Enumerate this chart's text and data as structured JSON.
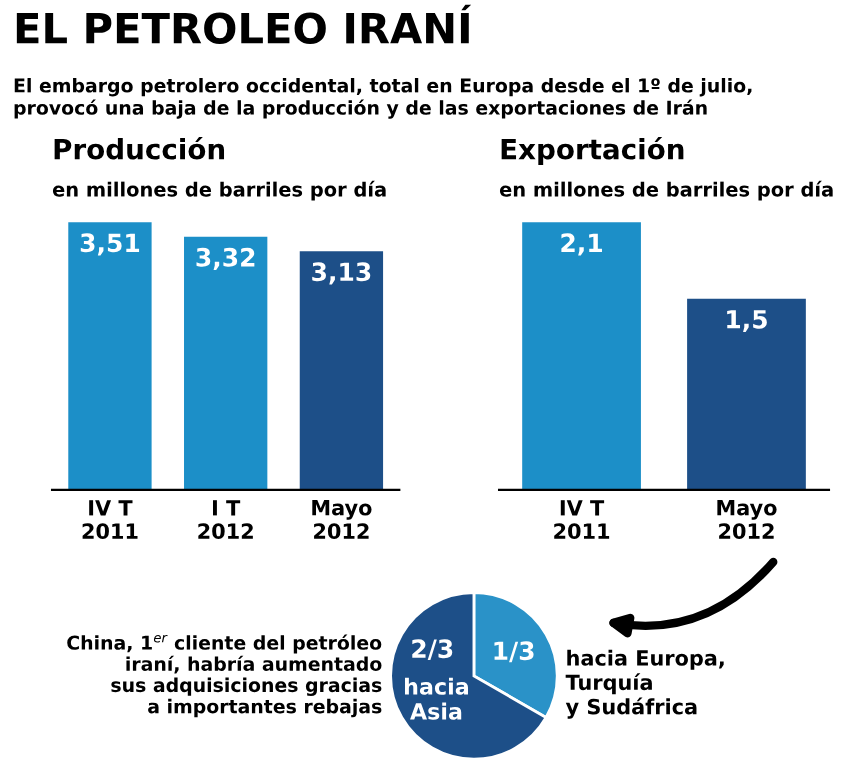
{
  "chart_data": [
    {
      "type": "bar",
      "title": "Producción",
      "subtitle": "en millones de barriles por día",
      "annotations": [
        "EL PETROLEO IRANÍ",
        "El embargo petrolero occidental, total en Europa desde el 1º de julio,\nprovocó una baja de la producción y de las exportaciones de Irán"
      ],
      "categories": [
        "IV T\n2011",
        "I T\n2012",
        "Mayo\n2012"
      ],
      "values": [
        3.51,
        3.32,
        3.13
      ],
      "value_labels": [
        "3,51",
        "3,32",
        "3,13"
      ],
      "colors": [
        "#1c8fc8",
        "#1c8fc8",
        "#1d4f88"
      ]
    },
    {
      "type": "bar",
      "title": "Exportación",
      "subtitle": "en millones de barriles por día",
      "categories": [
        "IV T\n2011",
        "Mayo\n2012"
      ],
      "values": [
        2.1,
        1.5
      ],
      "value_labels": [
        "2,1",
        "1,5"
      ],
      "colors": [
        "#1c8fc8",
        "#1d4f88"
      ]
    },
    {
      "type": "pie",
      "categories": [
        "hacia Europa,\nTurquía\ny Sudáfrica",
        "hacia\nAsia"
      ],
      "values": [
        0.3333,
        0.6667
      ],
      "value_labels": [
        "1/3",
        "2/3"
      ],
      "colors": [
        "#2a92c8",
        "#1d4f88"
      ],
      "annotations": [
        "China, 1$^{er}$ cliente del petróleo\niraní, habría aumentado\nsus adquisiciones gracias\na importantes rebajas"
      ]
    }
  ]
}
